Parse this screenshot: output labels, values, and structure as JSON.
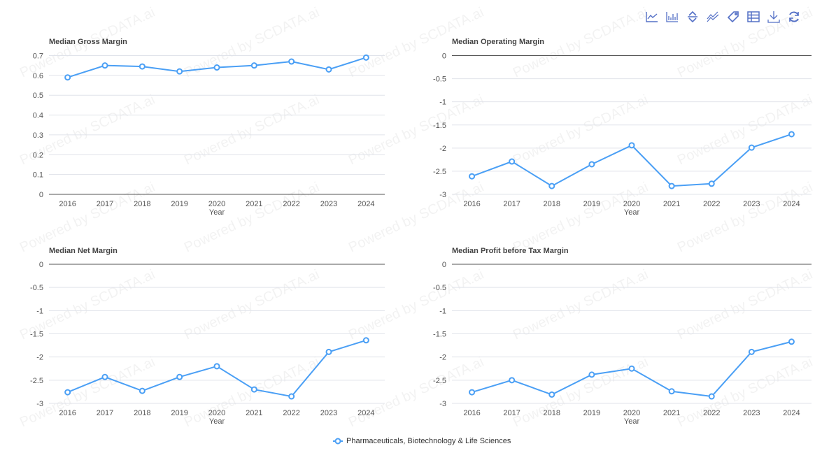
{
  "toolbar": {
    "icons": [
      "line-chart-icon",
      "bar-chart-icon",
      "stack-icon",
      "tiled-icon",
      "tag-icon",
      "data-view-icon",
      "download-icon",
      "refresh-icon"
    ]
  },
  "watermark": "Powered by SCDATA.ai",
  "legend": {
    "label": "Pharmaceuticals, Biotechnology & Life Sciences",
    "color": "#4a9ff5"
  },
  "chart_data": [
    {
      "type": "line",
      "title": "Median Gross Margin",
      "xlabel": "Year",
      "ylabel": "",
      "categories": [
        "2016",
        "2017",
        "2018",
        "2019",
        "2020",
        "2021",
        "2022",
        "2023",
        "2024"
      ],
      "ylim": [
        0,
        0.7
      ],
      "yticks": [
        "0",
        "0.1",
        "0.2",
        "0.3",
        "0.4",
        "0.5",
        "0.6",
        "0.7"
      ],
      "grid": true,
      "series": [
        {
          "name": "Pharmaceuticals, Biotechnology & Life Sciences",
          "values": [
            0.59,
            0.65,
            0.645,
            0.62,
            0.64,
            0.65,
            0.67,
            0.63,
            0.69
          ]
        }
      ]
    },
    {
      "type": "line",
      "title": "Median Operating Margin",
      "xlabel": "Year",
      "ylabel": "",
      "categories": [
        "2016",
        "2017",
        "2018",
        "2019",
        "2020",
        "2021",
        "2022",
        "2023",
        "2024"
      ],
      "ylim": [
        -3,
        0
      ],
      "yticks": [
        "0",
        "-0.5",
        "-1",
        "-1.5",
        "-2",
        "-2.5",
        "-3"
      ],
      "grid": true,
      "series": [
        {
          "name": "Pharmaceuticals, Biotechnology & Life Sciences",
          "values": [
            -2.61,
            -2.29,
            -2.82,
            -2.35,
            -1.94,
            -2.82,
            -2.77,
            -1.99,
            -1.7
          ]
        }
      ]
    },
    {
      "type": "line",
      "title": "Median Net Margin",
      "xlabel": "Year",
      "ylabel": "",
      "categories": [
        "2016",
        "2017",
        "2018",
        "2019",
        "2020",
        "2021",
        "2022",
        "2023",
        "2024"
      ],
      "ylim": [
        -3,
        0
      ],
      "yticks": [
        "0",
        "-0.5",
        "-1",
        "-1.5",
        "-2",
        "-2.5",
        "-3"
      ],
      "grid": true,
      "series": [
        {
          "name": "Pharmaceuticals, Biotechnology & Life Sciences",
          "values": [
            -2.76,
            -2.43,
            -2.73,
            -2.43,
            -2.2,
            -2.7,
            -2.85,
            -1.89,
            -1.64
          ]
        }
      ]
    },
    {
      "type": "line",
      "title": "Median Profit before Tax Margin",
      "xlabel": "Year",
      "ylabel": "",
      "categories": [
        "2016",
        "2017",
        "2018",
        "2019",
        "2020",
        "2021",
        "2022",
        "2023",
        "2024"
      ],
      "ylim": [
        -3,
        0
      ],
      "yticks": [
        "0",
        "-0.5",
        "-1",
        "-1.5",
        "-2",
        "-2.5",
        "-3"
      ],
      "grid": true,
      "series": [
        {
          "name": "Pharmaceuticals, Biotechnology & Life Sciences",
          "values": [
            -2.76,
            -2.5,
            -2.81,
            -2.38,
            -2.25,
            -2.74,
            -2.85,
            -1.89,
            -1.67
          ]
        }
      ]
    }
  ]
}
